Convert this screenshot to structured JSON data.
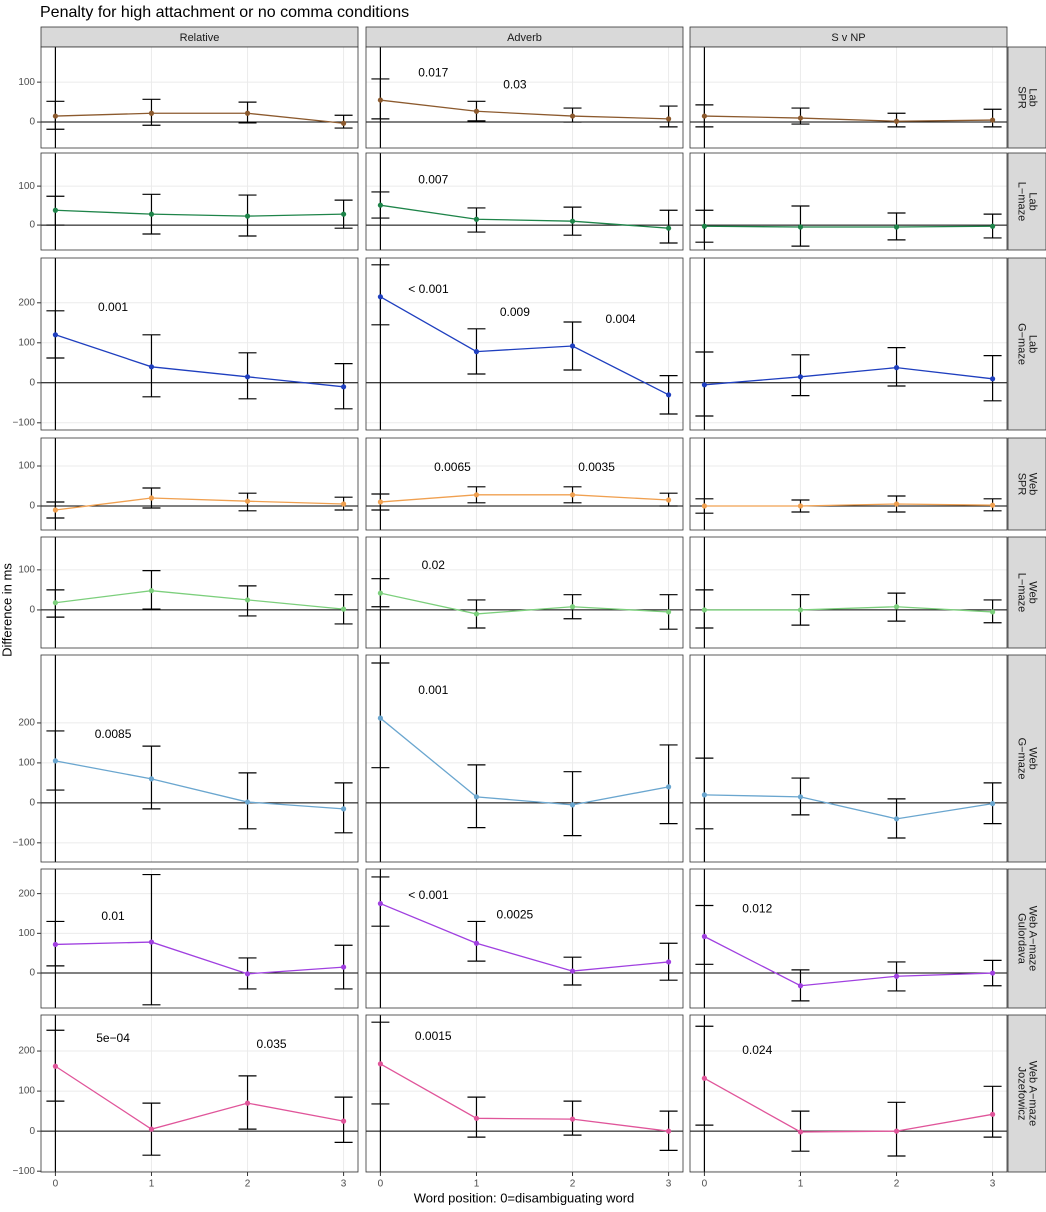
{
  "chart_data": {
    "type": "line",
    "title": "Penalty for high attachment or no comma conditions",
    "x_label": "Word position: 0=disambiguating word",
    "y_label": "Difference in ms",
    "columns": [
      "Relative",
      "Adverb",
      "S v NP"
    ],
    "x": [
      0,
      1,
      2,
      3
    ],
    "xlim": [
      -0.15,
      3.15
    ],
    "xticks": [
      0,
      1,
      2,
      3
    ],
    "grid": true,
    "rows": [
      {
        "label": [
          "Lab",
          "SPR"
        ],
        "color": "#8c5a2e",
        "ylim": [
          -65,
          188
        ],
        "yticks": [
          0,
          100
        ],
        "panels": [
          {
            "values": [
              15,
              22,
              22,
              -3
            ],
            "lower": [
              -18,
              -8,
              -2,
              -15
            ],
            "upper": [
              52,
              57,
              50,
              17
            ]
          },
          {
            "values": [
              55,
              27,
              15,
              8
            ],
            "lower": [
              8,
              3,
              0,
              -12
            ],
            "upper": [
              108,
              52,
              35,
              40
            ],
            "annotations": [
              {
                "x": 0.55,
                "y": 122,
                "label": "0.017"
              },
              {
                "x": 1.4,
                "y": 92,
                "label": "0.03"
              }
            ]
          },
          {
            "values": [
              15,
              10,
              2,
              5
            ],
            "lower": [
              -12,
              -5,
              -12,
              -12
            ],
            "upper": [
              43,
              35,
              22,
              32
            ]
          }
        ]
      },
      {
        "label": [
          "Lab",
          "L−maze"
        ],
        "color": "#1e8449",
        "ylim": [
          -64,
          185
        ],
        "yticks": [
          0,
          100
        ],
        "panels": [
          {
            "values": [
              38,
              28,
              23,
              28
            ],
            "lower": [
              0,
              -23,
              -28,
              -8
            ],
            "upper": [
              74,
              79,
              77,
              64
            ]
          },
          {
            "values": [
              51,
              15,
              10,
              -8
            ],
            "lower": [
              18,
              -18,
              -26,
              -46
            ],
            "upper": [
              85,
              44,
              46,
              38
            ],
            "annotations": [
              {
                "x": 0.55,
                "y": 115,
                "label": "0.007"
              }
            ]
          },
          {
            "values": [
              -3,
              -5,
              -5,
              -3
            ],
            "lower": [
              -44,
              -54,
              -38,
              -33
            ],
            "upper": [
              38,
              49,
              31,
              28
            ]
          }
        ]
      },
      {
        "label": [
          "Lab",
          "G−maze"
        ],
        "color": "#1f3fbf",
        "ylim": [
          -118,
          312
        ],
        "yticks": [
          {
            "value": -100,
            "label": "−100"
          },
          0,
          100,
          200
        ],
        "panels": [
          {
            "values": [
              120,
              40,
              15,
              -10
            ],
            "lower": [
              62,
              -35,
              -40,
              -65
            ],
            "upper": [
              180,
              120,
              75,
              48
            ],
            "annotations": [
              {
                "x": 0.6,
                "y": 188,
                "label": "0.001"
              }
            ]
          },
          {
            "values": [
              215,
              78,
              92,
              -30
            ],
            "lower": [
              145,
              22,
              32,
              -78
            ],
            "upper": [
              295,
              135,
              152,
              18
            ],
            "annotations": [
              {
                "x": 0.5,
                "y": 232,
                "label": "< 0.001"
              },
              {
                "x": 1.4,
                "y": 175,
                "label": "0.009"
              },
              {
                "x": 2.5,
                "y": 158,
                "label": "0.004"
              }
            ]
          },
          {
            "values": [
              -5,
              15,
              38,
              10
            ],
            "lower": [
              -83,
              -32,
              -8,
              -45
            ],
            "upper": [
              77,
              70,
              88,
              68
            ]
          }
        ]
      },
      {
        "label": [
          "Web",
          "SPR"
        ],
        "color": "#f0a050",
        "ylim": [
          -60,
          170
        ],
        "yticks": [
          0,
          100
        ],
        "panels": [
          {
            "values": [
              -10,
              20,
              12,
              5
            ],
            "lower": [
              -30,
              -5,
              -12,
              -10
            ],
            "upper": [
              10,
              45,
              32,
              22
            ]
          },
          {
            "values": [
              10,
              28,
              28,
              15
            ],
            "lower": [
              -10,
              8,
              8,
              0
            ],
            "upper": [
              30,
              48,
              48,
              32
            ],
            "annotations": [
              {
                "x": 0.75,
                "y": 95,
                "label": "0.0065"
              },
              {
                "x": 2.25,
                "y": 95,
                "label": "0.0035"
              }
            ]
          },
          {
            "values": [
              0,
              0,
              5,
              2
            ],
            "lower": [
              -18,
              -15,
              -15,
              -12
            ],
            "upper": [
              18,
              15,
              25,
              18
            ]
          }
        ]
      },
      {
        "label": [
          "Web",
          "L−maze"
        ],
        "color": "#7ccf7c",
        "ylim": [
          -95,
          182
        ],
        "yticks": [
          0,
          100
        ],
        "panels": [
          {
            "values": [
              18,
              48,
              25,
              2
            ],
            "lower": [
              -18,
              2,
              -15,
              -35
            ],
            "upper": [
              50,
              98,
              60,
              38
            ]
          },
          {
            "values": [
              42,
              -10,
              8,
              -5
            ],
            "lower": [
              8,
              -45,
              -22,
              -48
            ],
            "upper": [
              78,
              25,
              38,
              38
            ],
            "annotations": [
              {
                "x": 0.55,
                "y": 110,
                "label": "0.02"
              }
            ]
          },
          {
            "values": [
              0,
              0,
              8,
              -5
            ],
            "lower": [
              -45,
              -38,
              -28,
              -32
            ],
            "upper": [
              50,
              38,
              42,
              25
            ]
          }
        ]
      },
      {
        "label": [
          "Web",
          "G−maze"
        ],
        "color": "#6aa6cf",
        "ylim": [
          -148,
          370
        ],
        "yticks": [
          {
            "value": -100,
            "label": "−100"
          },
          0,
          100,
          200
        ],
        "panels": [
          {
            "values": [
              105,
              60,
              2,
              -15
            ],
            "lower": [
              32,
              -15,
              -65,
              -75
            ],
            "upper": [
              180,
              142,
              75,
              50
            ],
            "annotations": [
              {
                "x": 0.6,
                "y": 170,
                "label": "0.0085"
              }
            ]
          },
          {
            "values": [
              212,
              15,
              -5,
              40
            ],
            "lower": [
              88,
              -62,
              -82,
              -52
            ],
            "upper": [
              350,
              95,
              78,
              145
            ],
            "annotations": [
              {
                "x": 0.55,
                "y": 280,
                "label": "0.001"
              }
            ]
          },
          {
            "values": [
              20,
              15,
              -40,
              -2
            ],
            "lower": [
              -65,
              -30,
              -88,
              -52
            ],
            "upper": [
              112,
              62,
              10,
              50
            ]
          }
        ]
      },
      {
        "label": [
          "Web A−maze",
          "Gulordava"
        ],
        "color": "#a040e0",
        "ylim": [
          -88,
          262
        ],
        "yticks": [
          0,
          100,
          200
        ],
        "panels": [
          {
            "values": [
              72,
              78,
              -2,
              15
            ],
            "lower": [
              18,
              -80,
              -40,
              -40
            ],
            "upper": [
              130,
              248,
              38,
              70
            ],
            "annotations": [
              {
                "x": 0.6,
                "y": 142,
                "label": "0.01"
              }
            ]
          },
          {
            "values": [
              175,
              75,
              5,
              28
            ],
            "lower": [
              118,
              30,
              -30,
              -18
            ],
            "upper": [
              242,
              130,
              40,
              75
            ],
            "annotations": [
              {
                "x": 0.5,
                "y": 195,
                "label": "< 0.001"
              },
              {
                "x": 1.4,
                "y": 145,
                "label": "0.0025"
              }
            ]
          },
          {
            "values": [
              92,
              -32,
              -8,
              0
            ],
            "lower": [
              22,
              -70,
              -45,
              -32
            ],
            "upper": [
              170,
              8,
              28,
              32
            ],
            "annotations": [
              {
                "x": 0.55,
                "y": 160,
                "label": "0.012"
              }
            ]
          }
        ]
      },
      {
        "label": [
          "Web A−maze",
          "Jozefowicz"
        ],
        "color": "#e0559a",
        "ylim": [
          -102,
          290
        ],
        "yticks": [
          {
            "value": -100,
            "label": "−100"
          },
          0,
          100,
          200
        ],
        "panels": [
          {
            "values": [
              162,
              5,
              70,
              25
            ],
            "lower": [
              75,
              -60,
              5,
              -28
            ],
            "upper": [
              252,
              70,
              138,
              85
            ],
            "annotations": [
              {
                "x": 0.6,
                "y": 230,
                "label": "5e−04"
              },
              {
                "x": 2.25,
                "y": 215,
                "label": "0.035"
              }
            ]
          },
          {
            "values": [
              168,
              32,
              30,
              0
            ],
            "lower": [
              68,
              -15,
              -10,
              -48
            ],
            "upper": [
              272,
              85,
              75,
              50
            ],
            "annotations": [
              {
                "x": 0.55,
                "y": 235,
                "label": "0.0015"
              }
            ]
          },
          {
            "values": [
              132,
              -2,
              0,
              42
            ],
            "lower": [
              15,
              -50,
              -62,
              -15
            ],
            "upper": [
              262,
              50,
              72,
              112
            ],
            "annotations": [
              {
                "x": 0.55,
                "y": 200,
                "label": "0.024"
              }
            ]
          }
        ]
      }
    ]
  }
}
